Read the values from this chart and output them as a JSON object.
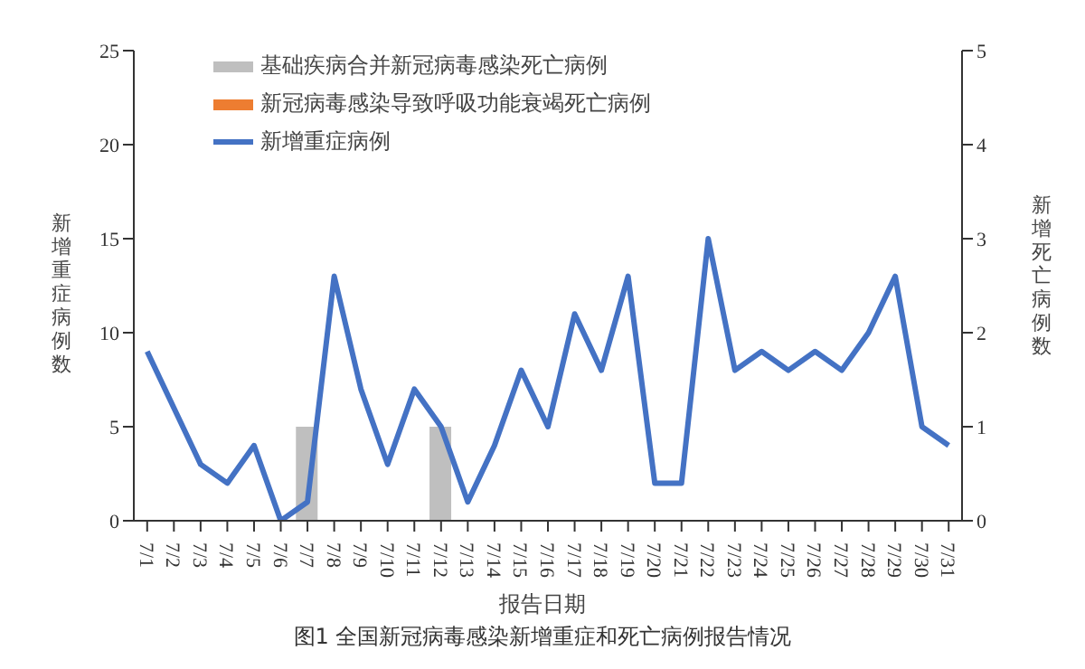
{
  "chart_data": {
    "type": "line",
    "title": "图1 全国新冠病毒感染新增重症和死亡病例报告情况",
    "xlabel": "报告日期",
    "ylabel": "新增重症病例数",
    "y2label": "新增死亡病例数",
    "categories": [
      "7/1",
      "7/2",
      "7/3",
      "7/4",
      "7/5",
      "7/6",
      "7/7",
      "7/8",
      "7/9",
      "7/10",
      "7/11",
      "7/12",
      "7/13",
      "7/14",
      "7/15",
      "7/16",
      "7/17",
      "7/18",
      "7/19",
      "7/20",
      "7/21",
      "7/22",
      "7/23",
      "7/24",
      "7/25",
      "7/26",
      "7/27",
      "7/28",
      "7/29",
      "7/30",
      "7/31"
    ],
    "series": [
      {
        "name": "基础疾病合并新冠病毒感染死亡病例",
        "type": "bar",
        "axis": "y2",
        "color": "#bfbfbf",
        "values": [
          0,
          0,
          0,
          0,
          0,
          0,
          1,
          0,
          0,
          0,
          0,
          1,
          0,
          0,
          0,
          0,
          0,
          0,
          0,
          0,
          0,
          0,
          0,
          0,
          0,
          0,
          0,
          0,
          0,
          0,
          0
        ]
      },
      {
        "name": "新冠病毒感染导致呼吸功能衰竭死亡病例",
        "type": "bar",
        "axis": "y2",
        "color": "#ed7d31",
        "values": [
          0,
          0,
          0,
          0,
          0,
          0,
          0,
          0,
          0,
          0,
          0,
          0,
          0,
          0,
          0,
          0,
          0,
          0,
          0,
          0,
          0,
          0,
          0,
          0,
          0,
          0,
          0,
          0,
          0,
          0,
          0
        ]
      },
      {
        "name": "新增重症病例",
        "color": "#4472c4",
        "values": [
          9,
          6,
          3,
          2,
          4,
          0,
          1,
          13,
          7,
          3,
          7,
          5,
          1,
          4,
          8,
          5,
          11,
          8,
          13,
          2,
          2,
          15,
          8,
          9,
          8,
          9,
          8,
          10,
          13,
          5,
          4
        ]
      }
    ],
    "stacked": true,
    "ylim": [
      0,
      25
    ],
    "yticks": [
      0,
      5,
      10,
      15,
      20,
      25
    ],
    "y2lim": [
      0,
      5
    ],
    "y2ticks": [
      0,
      1,
      2,
      3,
      4,
      5
    ],
    "grid": false,
    "legend": "top left",
    "marker": "none",
    "line_style": "solid"
  }
}
